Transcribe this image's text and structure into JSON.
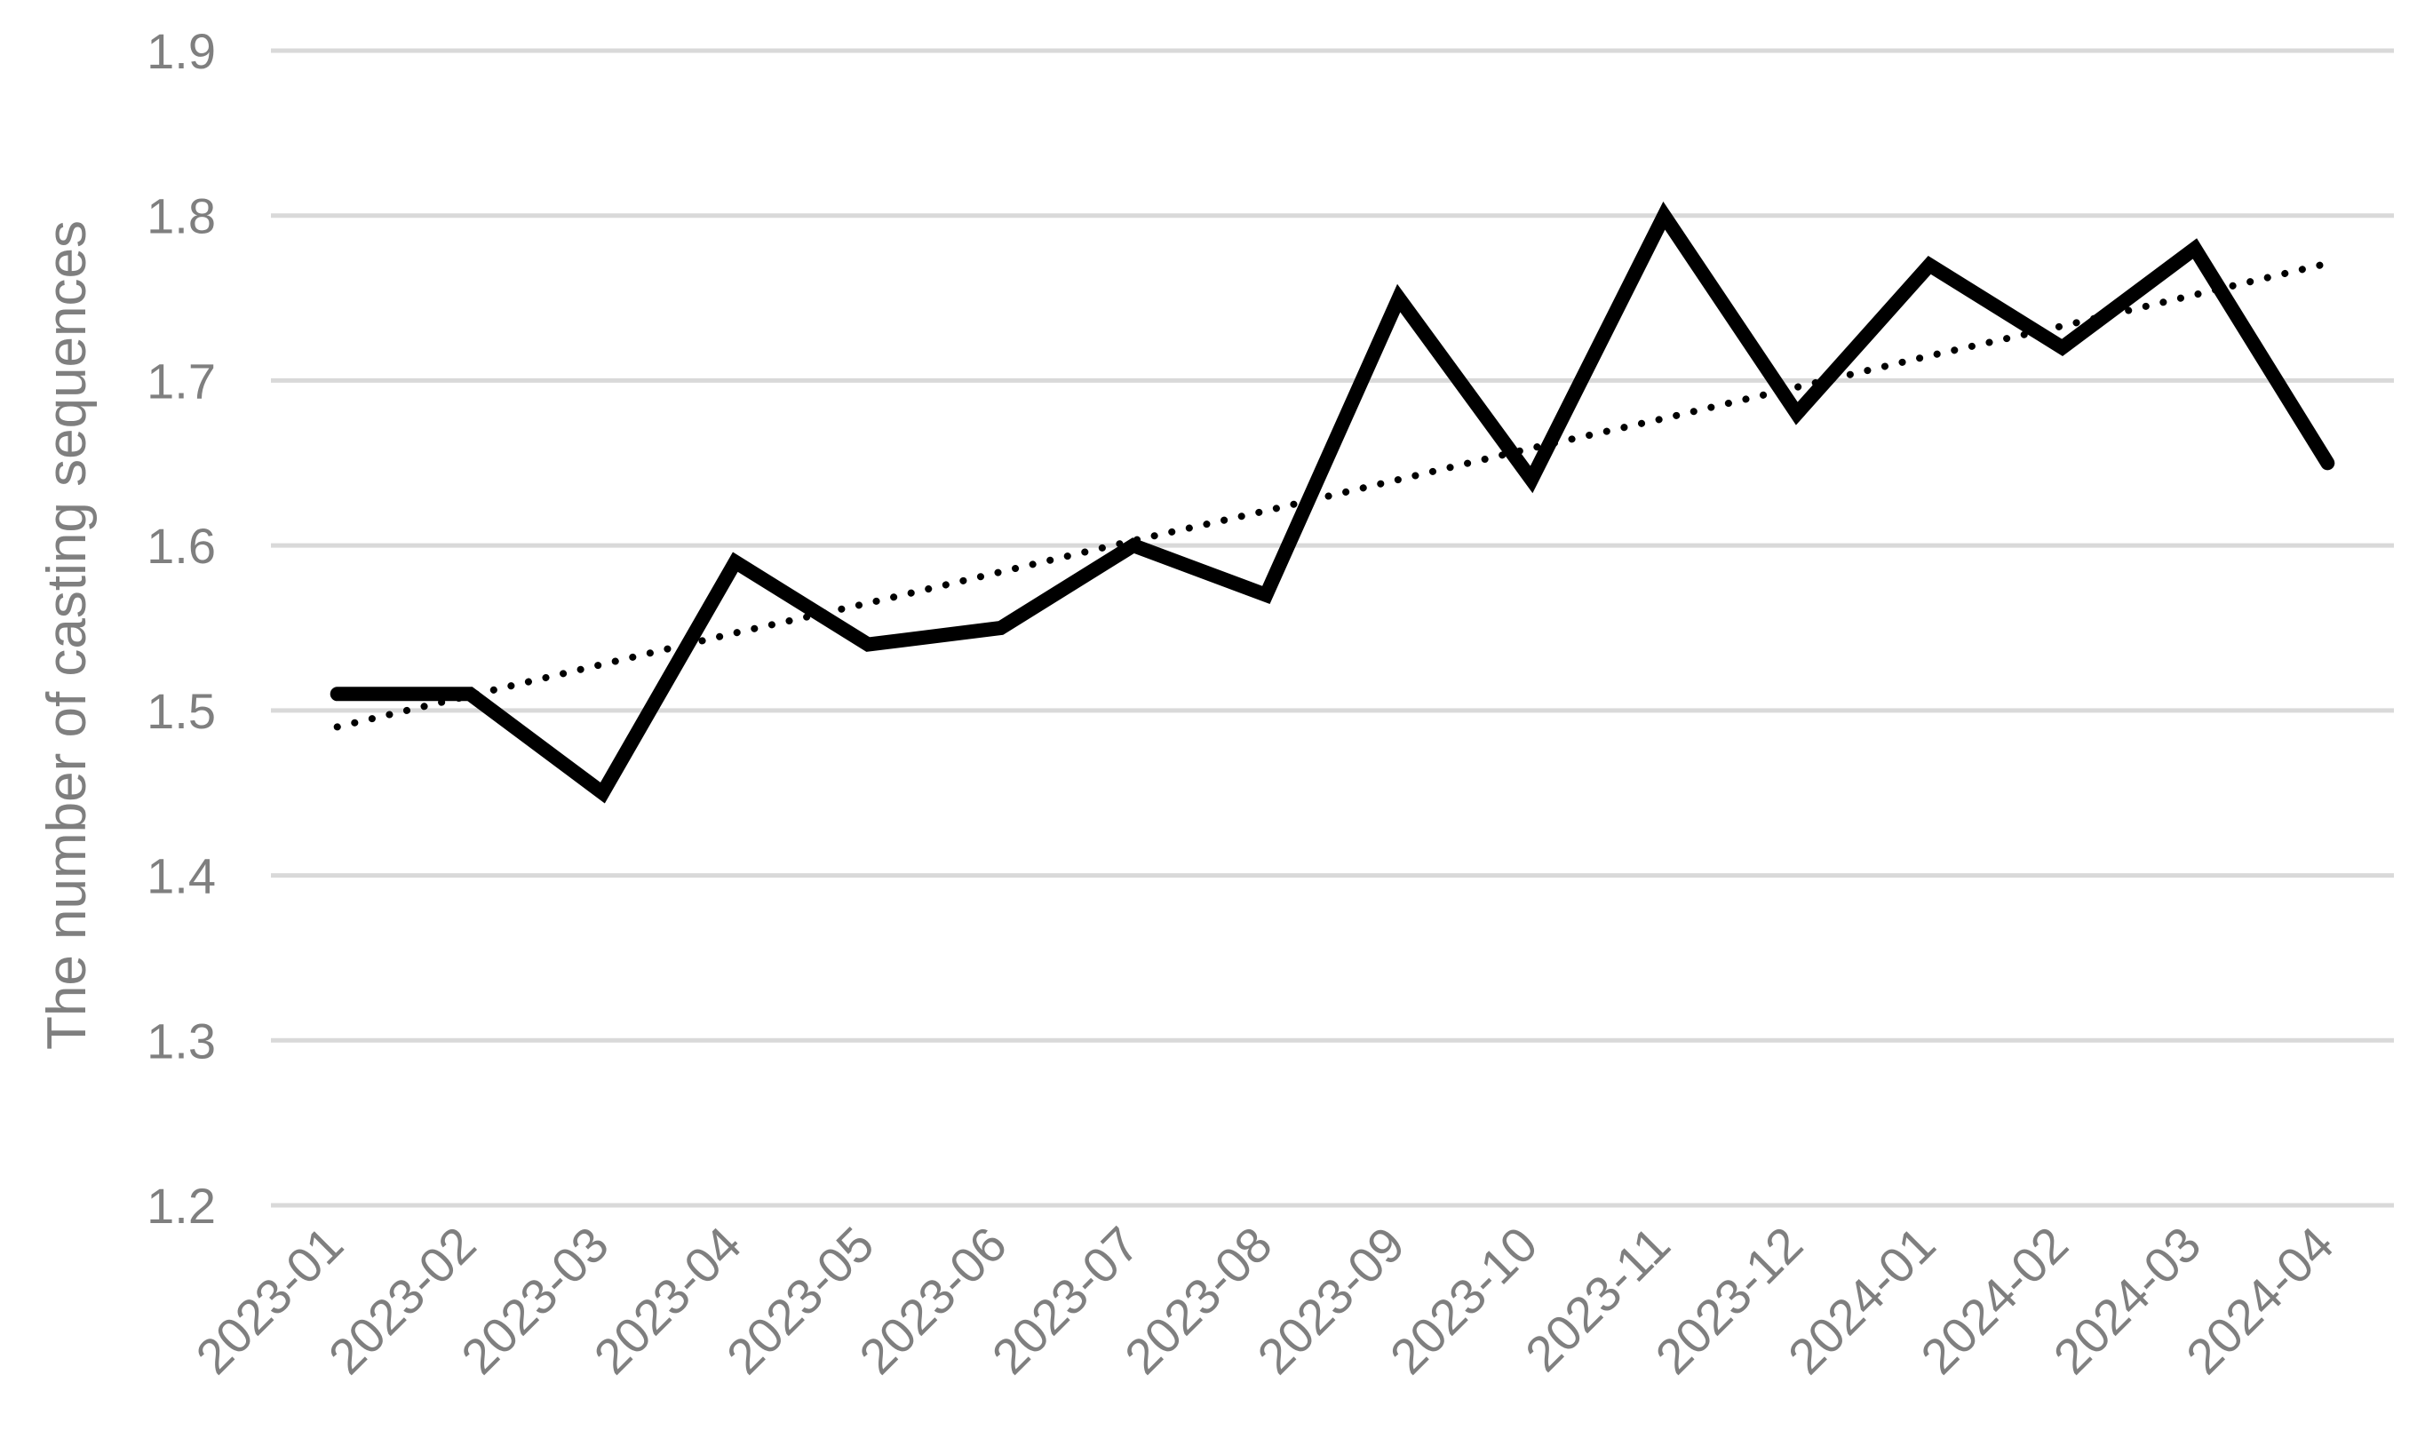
{
  "chart_data": {
    "type": "line",
    "title": "",
    "xlabel": "",
    "ylabel": "The number of casting sequences",
    "categories": [
      "2023-01",
      "2023-02",
      "2023-03",
      "2023-04",
      "2023-05",
      "2023-06",
      "2023-07",
      "2023-08",
      "2023-09",
      "2023-10",
      "2023-11",
      "2023-12",
      "2024-01",
      "2024-02",
      "2024-03",
      "2024-04"
    ],
    "series": [
      {
        "values": [
          1.51,
          1.51,
          1.45,
          1.59,
          1.54,
          1.55,
          1.6,
          1.57,
          1.75,
          1.64,
          1.8,
          1.68,
          1.77,
          1.72,
          1.78,
          1.65
        ],
        "style": "solid",
        "color": "#000000"
      },
      {
        "values": [
          1.49,
          1.509,
          1.528,
          1.547,
          1.565,
          1.584,
          1.603,
          1.621,
          1.64,
          1.659,
          1.677,
          1.696,
          1.715,
          1.733,
          1.752,
          1.771
        ],
        "style": "dotted",
        "color": "#000000",
        "trendline": true
      }
    ],
    "ylim": [
      1.2,
      1.9
    ],
    "yticks": [
      "1.2",
      "1.3",
      "1.4",
      "1.5",
      "1.6",
      "1.7",
      "1.8",
      "1.9"
    ],
    "grid": true,
    "legend": "none",
    "colors": {
      "grid": "#d9d9d9",
      "text": "#7f7f7f",
      "line": "#000000"
    }
  }
}
